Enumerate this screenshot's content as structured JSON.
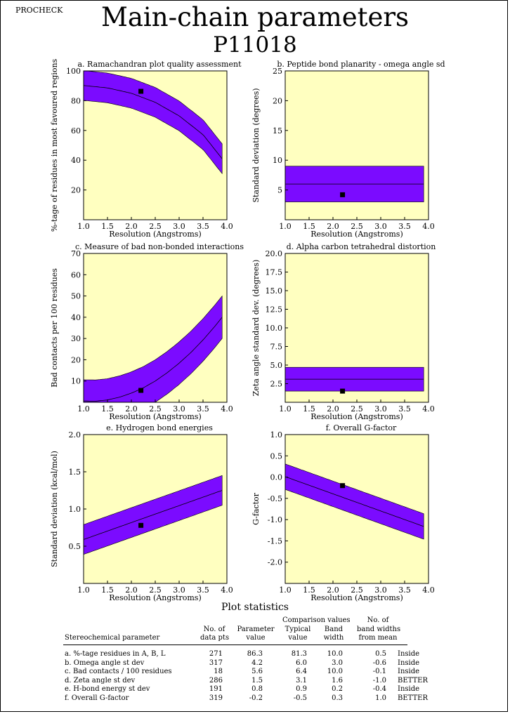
{
  "program": "PROCHECK",
  "title": "Main-chain parameters",
  "subtitle": "P11018",
  "colors": {
    "panel_bg": "#ffffc0",
    "band": "#7b0bff",
    "line": "#000000"
  },
  "chart_data": [
    {
      "id": "a",
      "type": "line",
      "title": "a. Ramachandran plot quality assessment",
      "xlabel": "Resolution (Angstroms)",
      "ylabel": "%-tage of residues in most favoured regions",
      "xlim": [
        1.0,
        4.0
      ],
      "ylim": [
        0,
        100
      ],
      "xticks": [
        "1.0",
        "1.5",
        "2.0",
        "2.5",
        "3.0",
        "3.5",
        "4.0"
      ],
      "yticks": [
        {
          "v": 20,
          "label": "20"
        },
        {
          "v": 40,
          "label": "40"
        },
        {
          "v": 60,
          "label": "60"
        },
        {
          "v": 80,
          "label": "80"
        },
        {
          "v": 100,
          "label": "100"
        }
      ],
      "band_x": [
        1.0,
        3.9
      ],
      "center_curve": {
        "x": [
          1.0,
          1.5,
          2.0,
          2.5,
          3.0,
          3.5,
          3.9
        ],
        "y": [
          90.2,
          88.6,
          85.0,
          78.9,
          69.8,
          57.2,
          41.0
        ]
      },
      "band_halfwidth": 10.0,
      "point": {
        "x": 2.2,
        "y": 86.3
      }
    },
    {
      "id": "b",
      "type": "line",
      "title": "b. Peptide bond planarity - omega angle sd",
      "xlabel": "Resolution (Angstroms)",
      "ylabel": "Standard deviation (degrees)",
      "xlim": [
        1.0,
        4.0
      ],
      "ylim": [
        0,
        25
      ],
      "xticks": [
        "1.0",
        "1.5",
        "2.0",
        "2.5",
        "3.0",
        "3.5",
        "4.0"
      ],
      "yticks": [
        {
          "v": 5,
          "label": "5"
        },
        {
          "v": 10,
          "label": "10"
        },
        {
          "v": 15,
          "label": "15"
        },
        {
          "v": 20,
          "label": "20"
        },
        {
          "v": 25,
          "label": "25"
        }
      ],
      "band_x": [
        1.0,
        3.9
      ],
      "center_curve": {
        "x": [
          1.0,
          3.9
        ],
        "y": [
          6.0,
          6.0
        ]
      },
      "band_halfwidth": 3.0,
      "point": {
        "x": 2.2,
        "y": 4.2
      }
    },
    {
      "id": "c",
      "type": "line",
      "title": "c. Measure of bad non-bonded interactions",
      "xlabel": "Resolution (Angstroms)",
      "ylabel": "Bad contacts per 100 residues",
      "xlim": [
        1.0,
        4.0
      ],
      "ylim": [
        0,
        70
      ],
      "xticks": [
        "1.0",
        "1.5",
        "2.0",
        "2.5",
        "3.0",
        "3.5",
        "4.0"
      ],
      "yticks": [
        {
          "v": 10,
          "label": "10"
        },
        {
          "v": 20,
          "label": "20"
        },
        {
          "v": 30,
          "label": "30"
        },
        {
          "v": 40,
          "label": "40"
        },
        {
          "v": 50,
          "label": "50"
        },
        {
          "v": 60,
          "label": "60"
        },
        {
          "v": 70,
          "label": "70"
        }
      ],
      "band_x": [
        1.0,
        3.9
      ],
      "center_curve": {
        "x": [
          1.0,
          1.25,
          1.5,
          1.75,
          2.0,
          2.25,
          2.5,
          2.75,
          3.0,
          3.25,
          3.5,
          3.75,
          3.9
        ],
        "y": [
          0.6,
          0.5,
          1.1,
          2.4,
          4.3,
          6.8,
          10.0,
          13.9,
          18.4,
          23.5,
          29.3,
          35.8,
          40.0
        ]
      },
      "band_halfwidth": 10.0,
      "clip_min": 0,
      "top_floor": 10.5,
      "point": {
        "x": 2.2,
        "y": 5.6
      }
    },
    {
      "id": "d",
      "type": "line",
      "title": "d. Alpha carbon tetrahedral distortion",
      "xlabel": "Resolution (Angstroms)",
      "ylabel": "Zeta angle standard dev. (degrees)",
      "xlim": [
        1.0,
        4.0
      ],
      "ylim": [
        0,
        20
      ],
      "xticks": [
        "1.0",
        "1.5",
        "2.0",
        "2.5",
        "3.0",
        "3.5",
        "4.0"
      ],
      "yticks": [
        {
          "v": 2.5,
          "label": "2.5"
        },
        {
          "v": 5,
          "label": "5.0"
        },
        {
          "v": 7.5,
          "label": "7.5"
        },
        {
          "v": 10,
          "label": "10.0"
        },
        {
          "v": 12.5,
          "label": "12.5"
        },
        {
          "v": 15,
          "label": "15.0"
        },
        {
          "v": 17.5,
          "label": "17.5"
        },
        {
          "v": 20,
          "label": "20.0"
        }
      ],
      "band_x": [
        1.0,
        3.9
      ],
      "center_curve": {
        "x": [
          1.0,
          3.9
        ],
        "y": [
          3.1,
          3.1
        ]
      },
      "band_halfwidth": 1.6,
      "point": {
        "x": 2.2,
        "y": 1.5
      }
    },
    {
      "id": "e",
      "type": "line",
      "title": "e. Hydrogen bond energies",
      "xlabel": "Resolution (Angstroms)",
      "ylabel": "Standard deviation (kcal/mol)",
      "xlim": [
        1.0,
        4.0
      ],
      "ylim": [
        0,
        2.0
      ],
      "xticks": [
        "1.0",
        "1.5",
        "2.0",
        "2.5",
        "3.0",
        "3.5",
        "4.0"
      ],
      "yticks": [
        {
          "v": 0.5,
          "label": "0.5"
        },
        {
          "v": 1.0,
          "label": "1.0"
        },
        {
          "v": 1.5,
          "label": "1.5"
        },
        {
          "v": 2.0,
          "label": "2.0"
        }
      ],
      "band_x": [
        1.0,
        3.9
      ],
      "center_curve": {
        "x": [
          1.0,
          3.9
        ],
        "y": [
          0.59,
          1.25
        ]
      },
      "band_halfwidth": 0.2,
      "point": {
        "x": 2.2,
        "y": 0.78
      }
    },
    {
      "id": "f",
      "type": "line",
      "title": "f. Overall G-factor",
      "xlabel": "Resolution (Angstroms)",
      "ylabel": "G-factor",
      "xlim": [
        1.0,
        4.0
      ],
      "ylim": [
        -2.5,
        1.0
      ],
      "xticks": [
        "1.0",
        "1.5",
        "2.0",
        "2.5",
        "3.0",
        "3.5",
        "4.0"
      ],
      "yticks": [
        {
          "v": -2.0,
          "label": "-2.0"
        },
        {
          "v": -1.5,
          "label": "-1.5"
        },
        {
          "v": -1.0,
          "label": "-1.0"
        },
        {
          "v": -0.5,
          "label": "-0.5"
        },
        {
          "v": 0.0,
          "label": "0.0"
        },
        {
          "v": 0.5,
          "label": "0.5"
        },
        {
          "v": 1.0,
          "label": "1.0"
        }
      ],
      "band_x": [
        1.0,
        3.9
      ],
      "center_curve": {
        "x": [
          1.0,
          3.9
        ],
        "y": [
          0.01,
          -1.16
        ]
      },
      "band_halfwidth": 0.3,
      "point": {
        "x": 2.2,
        "y": -0.2
      }
    }
  ],
  "stats": {
    "title": "Plot statistics",
    "header": {
      "param": "Stereochemical parameter",
      "npts": [
        "No. of",
        "data pts"
      ],
      "pval": [
        "Parameter",
        "value"
      ],
      "comparison": "Comparison values",
      "typical": [
        "Typical",
        "value"
      ],
      "bandwidth": [
        "Band",
        "width"
      ],
      "nbw": [
        "No. of",
        "band widths",
        "from mean"
      ]
    },
    "rows": [
      {
        "param": "a. %-tage residues in A, B, L",
        "npts": "271",
        "value": "86.3",
        "typical": "81.3",
        "width": "10.0",
        "nbw": "0.5",
        "verdict": "Inside"
      },
      {
        "param": "b. Omega angle st dev",
        "npts": "317",
        "value": "4.2",
        "typical": "6.0",
        "width": "3.0",
        "nbw": "-0.6",
        "verdict": "Inside"
      },
      {
        "param": "c. Bad contacts / 100 residues",
        "npts": "18",
        "value": "5.6",
        "typical": "6.4",
        "width": "10.0",
        "nbw": "-0.1",
        "verdict": "Inside"
      },
      {
        "param": "d. Zeta angle st dev",
        "npts": "286",
        "value": "1.5",
        "typical": "3.1",
        "width": "1.6",
        "nbw": "-1.0",
        "verdict": "BETTER"
      },
      {
        "param": "e. H-bond energy st dev",
        "npts": "191",
        "value": "0.8",
        "typical": "0.9",
        "width": "0.2",
        "nbw": "-0.4",
        "verdict": "Inside"
      },
      {
        "param": "f. Overall G-factor",
        "npts": "319",
        "value": "-0.2",
        "typical": "-0.5",
        "width": "0.3",
        "nbw": "1.0",
        "verdict": "BETTER"
      }
    ]
  }
}
